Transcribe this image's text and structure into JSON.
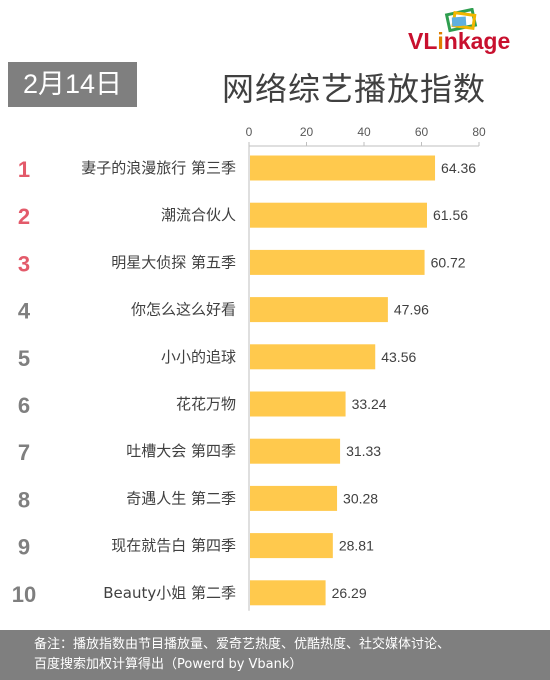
{
  "date_badge": "2月14日",
  "title": "网络综艺播放指数",
  "logo": {
    "text_before": "VL",
    "text_after": "nkage",
    "color": "#c8102e"
  },
  "footer": {
    "line1": "备注：播放指数由节目播放量、爱奇艺热度、优酷热度、社交媒体讨论、",
    "line2": "百度搜索加权计算得出（Powerd by Vbank）"
  },
  "chart_data": {
    "type": "bar",
    "orientation": "horizontal",
    "categories": [
      "妻子的浪漫旅行 第三季",
      "潮流合伙人",
      "明星大侦探 第五季",
      "你怎么这么好看",
      "小小的追球",
      "花花万物",
      "吐槽大会 第四季",
      "奇遇人生 第二季",
      "现在就告白  第四季",
      "Beauty小姐 第二季"
    ],
    "ranks": [
      "1",
      "2",
      "3",
      "4",
      "5",
      "6",
      "7",
      "8",
      "9",
      "10"
    ],
    "values": [
      64.36,
      61.56,
      60.72,
      47.96,
      43.56,
      33.24,
      31.33,
      30.28,
      28.81,
      26.29
    ],
    "value_labels": [
      "64.36",
      "61.56",
      "60.72",
      "47.96",
      "43.56",
      "33.24",
      "31.33",
      "30.28",
      "28.81",
      "26.29"
    ],
    "x_ticks": [
      "0",
      "20",
      "40",
      "60",
      "80"
    ],
    "xlim": [
      0,
      80
    ],
    "axis_position": "top",
    "bar_color": "#ffc94d",
    "top_rank_color": "#e35a6a",
    "rank_color": "#7f7f7f"
  }
}
